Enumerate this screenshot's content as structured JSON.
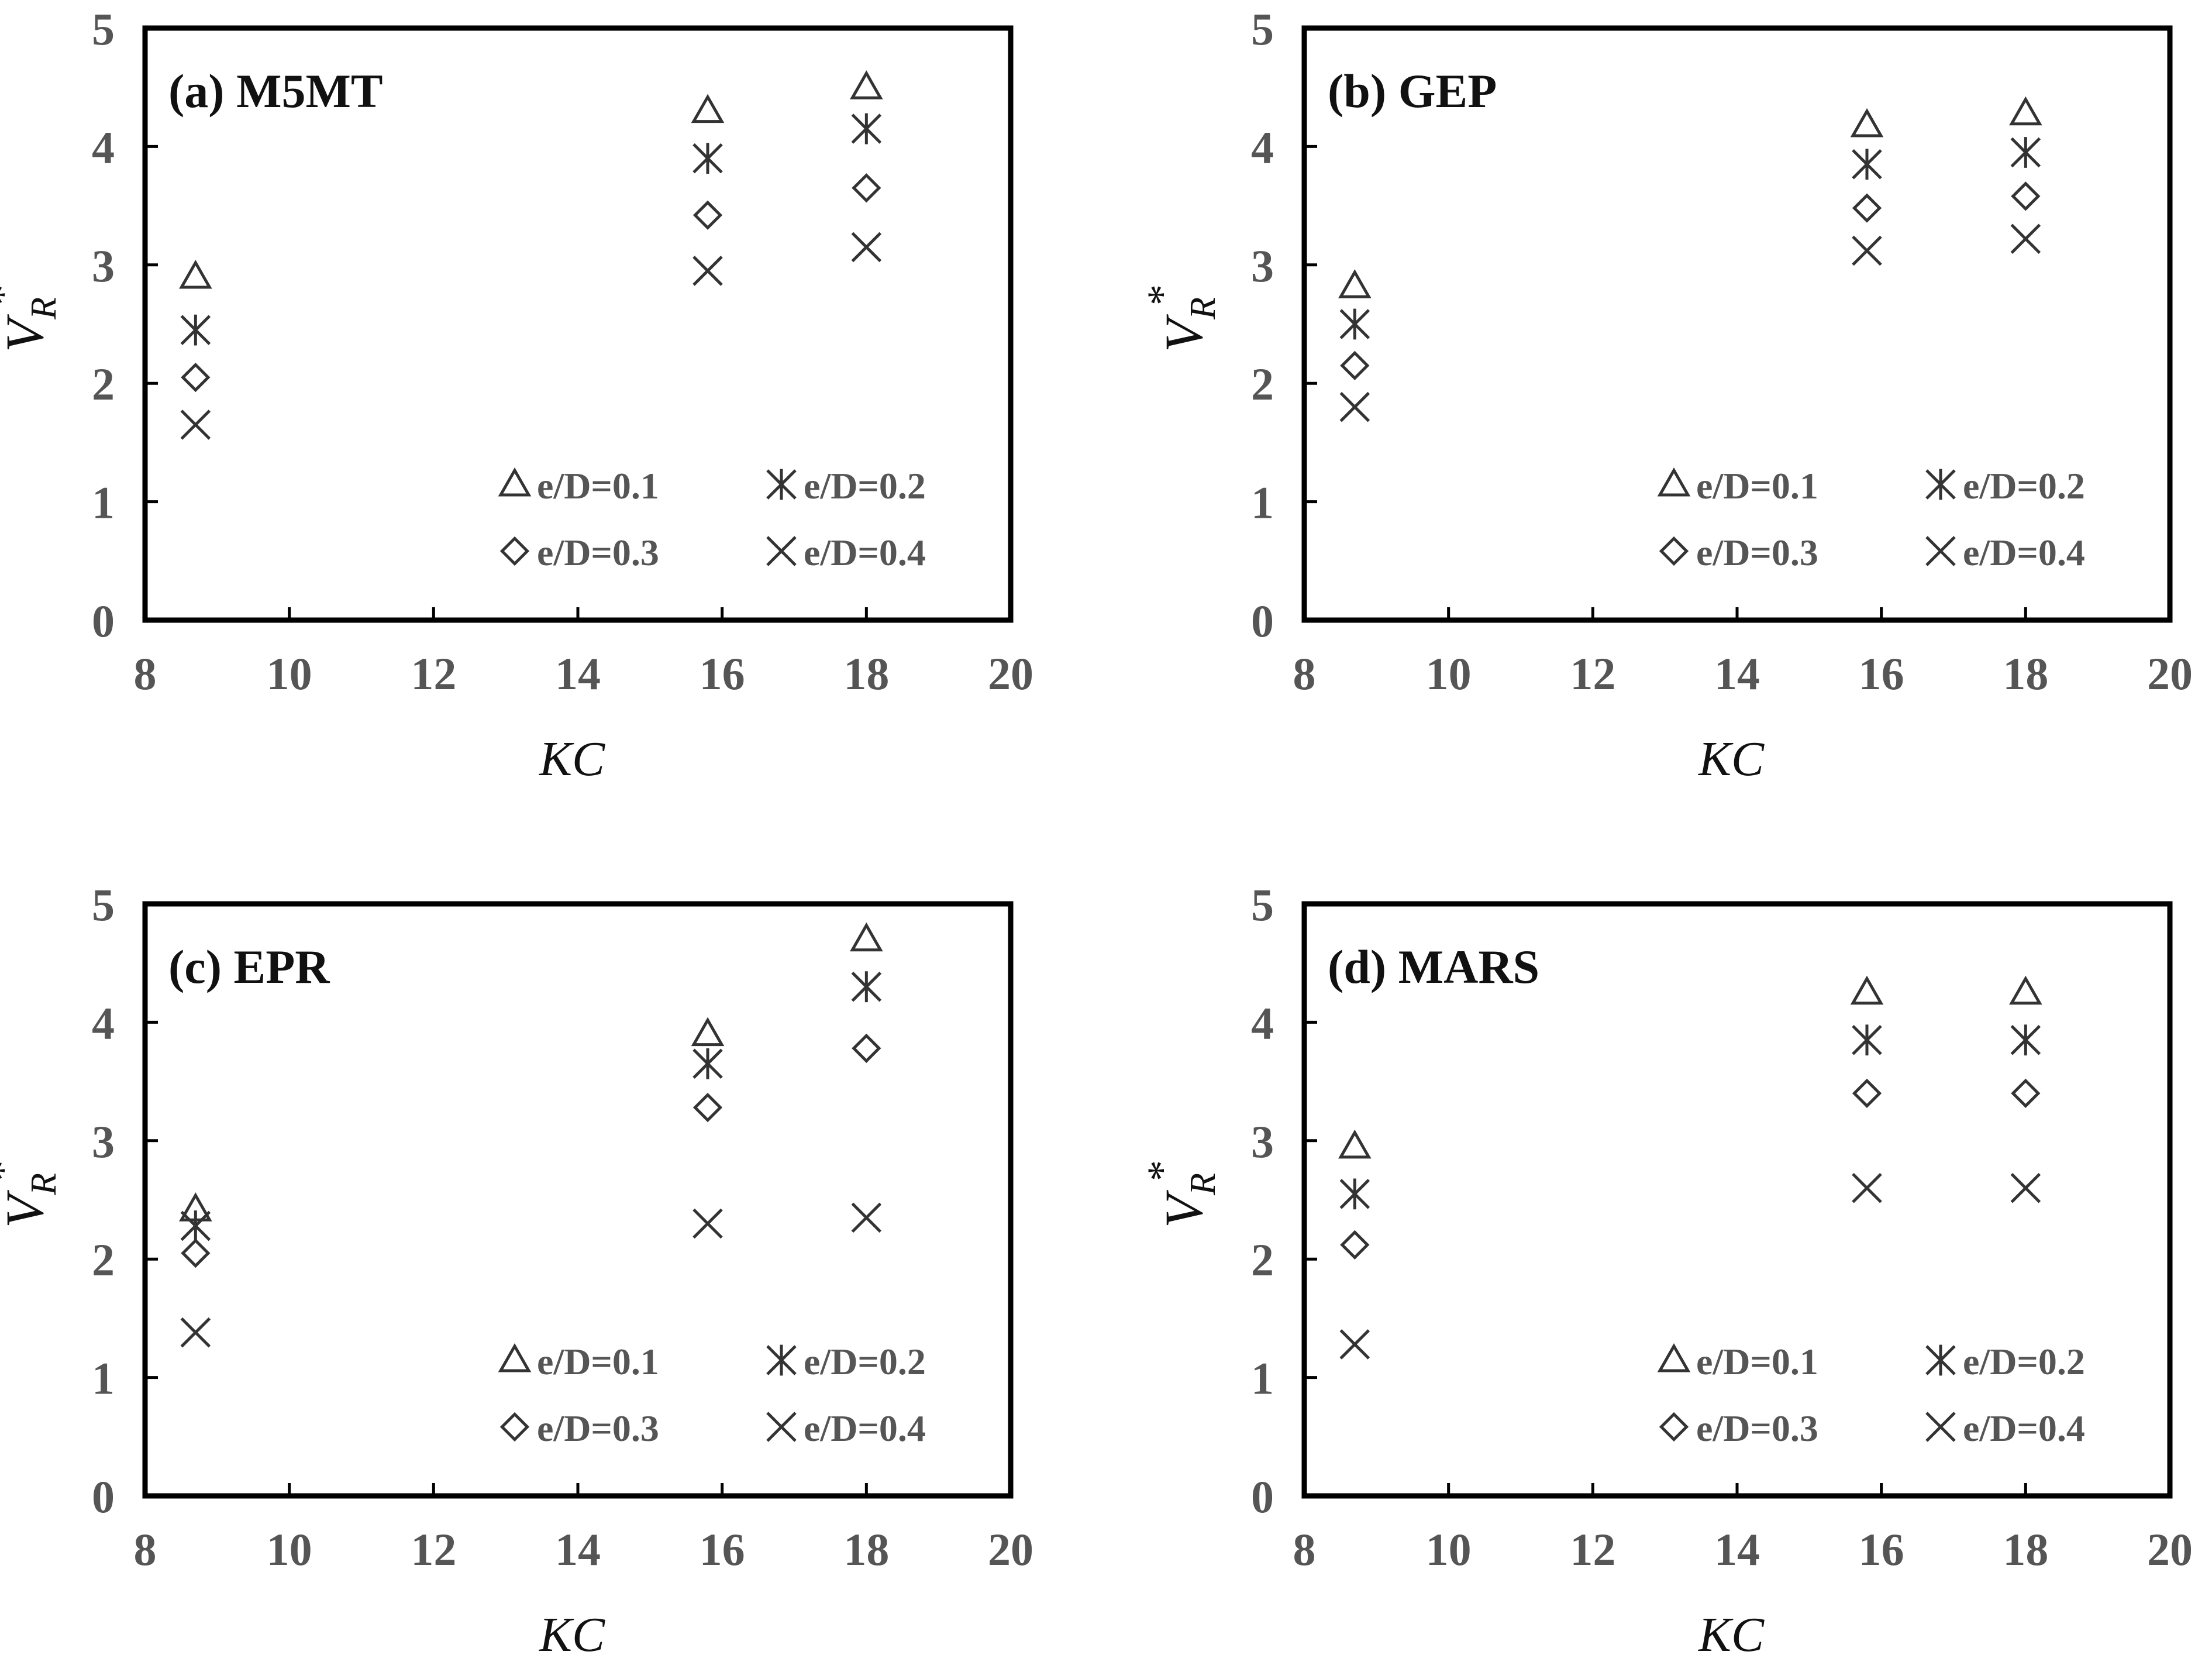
{
  "chart_data": [
    {
      "type": "scatter",
      "title": "(a) M5MT",
      "xlabel": "KC",
      "ylabel": "V_R*",
      "xlim": [
        8,
        20
      ],
      "ylim": [
        0,
        5
      ],
      "xticks": [
        "8",
        "10",
        "12",
        "14",
        "16",
        "18",
        "20"
      ],
      "yticks": [
        "0",
        "1",
        "2",
        "3",
        "4",
        "5"
      ],
      "legend_placement": "bottom-right",
      "series": [
        {
          "name": "e/D=0.1",
          "marker": "triangle",
          "x": [
            8.7,
            15.8,
            18.0
          ],
          "y": [
            2.9,
            4.3,
            4.5
          ]
        },
        {
          "name": "e/D=0.2",
          "marker": "asterisk",
          "x": [
            8.7,
            15.8,
            18.0
          ],
          "y": [
            2.45,
            3.9,
            4.15
          ]
        },
        {
          "name": "e/D=0.3",
          "marker": "diamond",
          "x": [
            8.7,
            15.8,
            18.0
          ],
          "y": [
            2.05,
            3.42,
            3.65
          ]
        },
        {
          "name": "e/D=0.4",
          "marker": "x",
          "x": [
            8.7,
            15.8,
            18.0
          ],
          "y": [
            1.65,
            2.95,
            3.15
          ]
        }
      ]
    },
    {
      "type": "scatter",
      "title": "(b) GEP",
      "xlabel": "KC",
      "ylabel": "V_R*",
      "xlim": [
        8,
        20
      ],
      "ylim": [
        0,
        5
      ],
      "xticks": [
        "8",
        "10",
        "12",
        "14",
        "16",
        "18",
        "20"
      ],
      "yticks": [
        "0",
        "1",
        "2",
        "3",
        "4",
        "5"
      ],
      "legend_placement": "bottom-right",
      "series": [
        {
          "name": "e/D=0.1",
          "marker": "triangle",
          "x": [
            8.7,
            15.8,
            18.0
          ],
          "y": [
            2.82,
            4.18,
            4.28
          ]
        },
        {
          "name": "e/D=0.2",
          "marker": "asterisk",
          "x": [
            8.7,
            15.8,
            18.0
          ],
          "y": [
            2.5,
            3.85,
            3.95
          ]
        },
        {
          "name": "e/D=0.3",
          "marker": "diamond",
          "x": [
            8.7,
            15.8,
            18.0
          ],
          "y": [
            2.15,
            3.48,
            3.58
          ]
        },
        {
          "name": "e/D=0.4",
          "marker": "x",
          "x": [
            8.7,
            15.8,
            18.0
          ],
          "y": [
            1.8,
            3.12,
            3.22
          ]
        }
      ]
    },
    {
      "type": "scatter",
      "title": "(c) EPR",
      "xlabel": "KC",
      "ylabel": "V_R*",
      "xlim": [
        8,
        20
      ],
      "ylim": [
        0,
        5
      ],
      "xticks": [
        "8",
        "10",
        "12",
        "14",
        "16",
        "18",
        "20"
      ],
      "yticks": [
        "0",
        "1",
        "2",
        "3",
        "4",
        "5"
      ],
      "legend_placement": "bottom-right",
      "series": [
        {
          "name": "e/D=0.1",
          "marker": "triangle",
          "x": [
            8.7,
            15.8,
            18.0
          ],
          "y": [
            2.42,
            3.9,
            4.7
          ]
        },
        {
          "name": "e/D=0.2",
          "marker": "asterisk",
          "x": [
            8.7,
            15.8,
            18.0
          ],
          "y": [
            2.28,
            3.65,
            4.3
          ]
        },
        {
          "name": "e/D=0.3",
          "marker": "diamond",
          "x": [
            8.7,
            15.8,
            18.0
          ],
          "y": [
            2.05,
            3.28,
            3.78
          ]
        },
        {
          "name": "e/D=0.4",
          "marker": "x",
          "x": [
            8.7,
            15.8,
            18.0
          ],
          "y": [
            1.38,
            2.3,
            2.35
          ]
        }
      ]
    },
    {
      "type": "scatter",
      "title": "(d) MARS",
      "xlabel": "KC",
      "ylabel": "V_R*",
      "xlim": [
        8,
        20
      ],
      "ylim": [
        0,
        5
      ],
      "xticks": [
        "8",
        "10",
        "12",
        "14",
        "16",
        "18",
        "20"
      ],
      "yticks": [
        "0",
        "1",
        "2",
        "3",
        "4",
        "5"
      ],
      "legend_placement": "bottom-right",
      "series": [
        {
          "name": "e/D=0.1",
          "marker": "triangle",
          "x": [
            8.7,
            15.8,
            18.0
          ],
          "y": [
            2.95,
            4.25,
            4.25
          ]
        },
        {
          "name": "e/D=0.2",
          "marker": "asterisk",
          "x": [
            8.7,
            15.8,
            18.0
          ],
          "y": [
            2.55,
            3.85,
            3.85
          ]
        },
        {
          "name": "e/D=0.3",
          "marker": "diamond",
          "x": [
            8.7,
            15.8,
            18.0
          ],
          "y": [
            2.12,
            3.4,
            3.4
          ]
        },
        {
          "name": "e/D=0.4",
          "marker": "x",
          "x": [
            8.7,
            15.8,
            18.0
          ],
          "y": [
            1.28,
            2.6,
            2.6
          ]
        }
      ]
    }
  ],
  "ylabel_parts": {
    "symbol": "V",
    "subscript": "R",
    "superscript": "*"
  }
}
